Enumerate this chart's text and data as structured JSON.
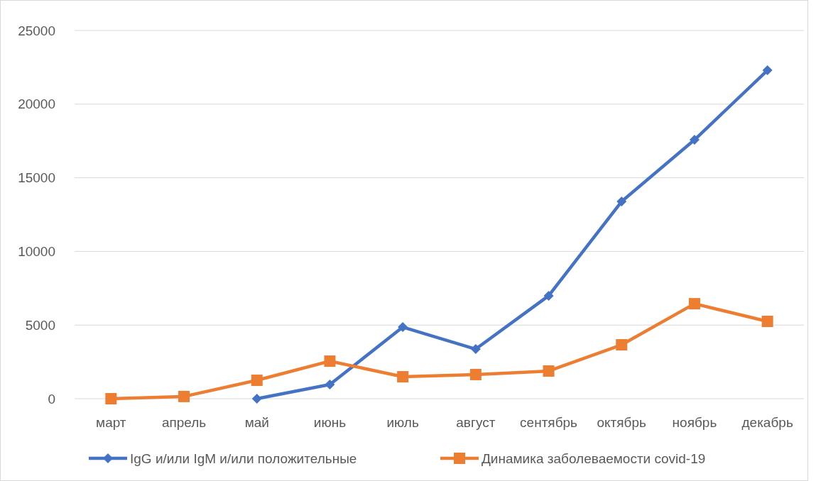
{
  "chart_data": {
    "type": "line",
    "categories": [
      "март",
      "апрель",
      "май",
      "июнь",
      "июль",
      "август",
      "сентябрь",
      "октябрь",
      "ноябрь",
      "декабрь"
    ],
    "series": [
      {
        "name": "IgG и/или IgM и/или положительные",
        "color": "#4472c4",
        "marker": "diamond",
        "values": [
          null,
          null,
          0,
          960,
          4860,
          3370,
          6990,
          13390,
          17580,
          22300
        ]
      },
      {
        "name": "Динамика заболеваемости covid-19",
        "color": "#ed7d31",
        "marker": "square",
        "values": [
          0,
          150,
          1250,
          2550,
          1490,
          1640,
          1880,
          3660,
          6450,
          5250
        ]
      }
    ],
    "ylim": [
      0,
      25000
    ],
    "yticks": [
      0,
      5000,
      10000,
      15000,
      20000,
      25000
    ],
    "grid": "y",
    "legend": "bottom",
    "line_style": "solid"
  }
}
